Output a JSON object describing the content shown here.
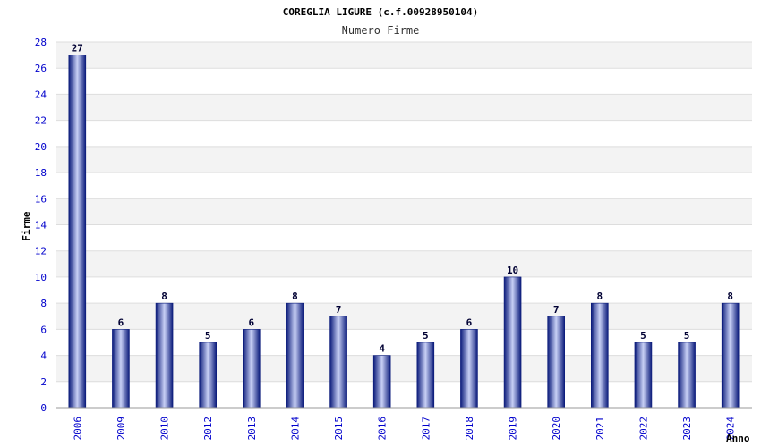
{
  "chart_data": {
    "type": "bar",
    "title": "COREGLIA LIGURE (c.f.00928950104)",
    "subtitle": "Numero Firme",
    "xlabel": "Anno",
    "ylabel": "Firme",
    "categories": [
      "2006",
      "2009",
      "2010",
      "2012",
      "2013",
      "2014",
      "2015",
      "2016",
      "2017",
      "2018",
      "2019",
      "2020",
      "2021",
      "2022",
      "2023",
      "2024"
    ],
    "values": [
      27,
      6,
      8,
      5,
      6,
      8,
      7,
      4,
      5,
      6,
      10,
      7,
      8,
      5,
      5,
      8
    ],
    "ylim": [
      0,
      28
    ],
    "yticks": [
      "0",
      "2",
      "4",
      "6",
      "8",
      "10",
      "12",
      "14",
      "16",
      "18",
      "20",
      "22",
      "24",
      "26",
      "28"
    ],
    "grid": true,
    "legend": "none",
    "colors": {
      "bar_dark": "#0a1a7a",
      "bar_light": "#c8d0f5",
      "band_light": "#f3f3f3",
      "band_white": "#ffffff",
      "grid": "#dddddd",
      "tick_text": "#0000cc"
    }
  }
}
